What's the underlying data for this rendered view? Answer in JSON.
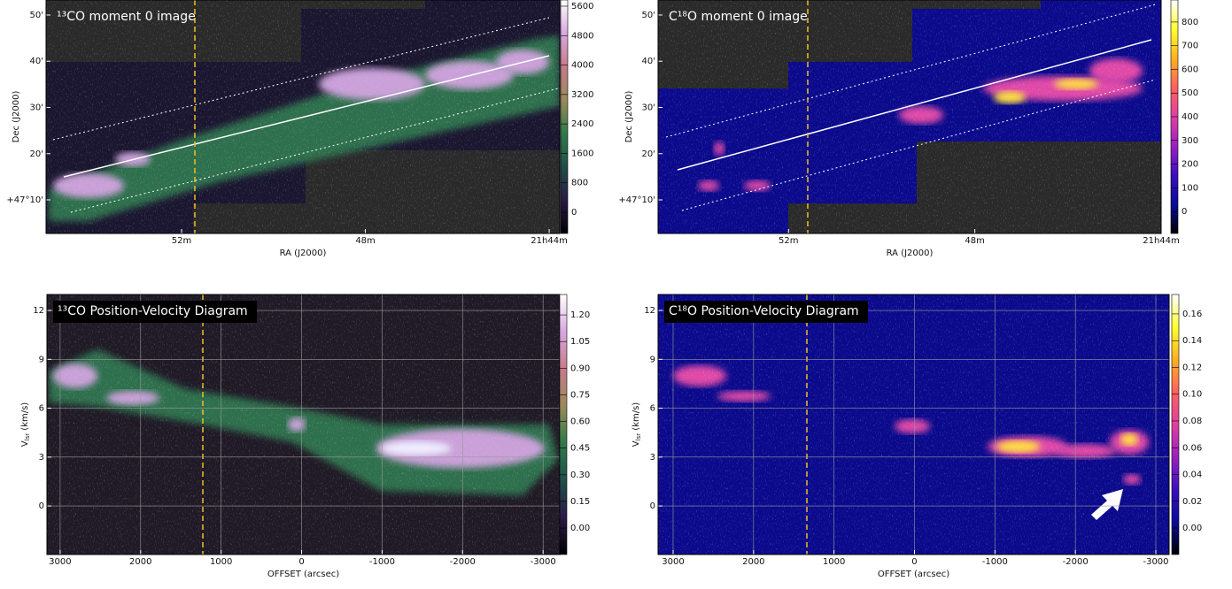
{
  "chart_data": [
    {
      "type": "image",
      "title": "¹³CO moment 0 image",
      "xlabel": "RA (J2000)",
      "ylabel": {
        "main": "Dec (J2000)"
      },
      "xlim": [
        54.95,
        43.77
      ],
      "ylim": [
        2.73,
        53.25
      ],
      "xticks": [
        {
          "value": 52,
          "label": "52m"
        },
        {
          "value": 48,
          "label": "48m"
        },
        {
          "value": 44,
          "label": "21h44m"
        }
      ],
      "yticks": [
        {
          "value": 10,
          "label": "+47°10'"
        },
        {
          "value": 20,
          "label": "20'"
        },
        {
          "value": 30,
          "label": "30'"
        },
        {
          "value": 40,
          "label": "40'"
        },
        {
          "value": 50,
          "label": "50'"
        }
      ],
      "clim": [
        -576,
        5768
      ],
      "cticks": [
        0,
        800,
        1600,
        2400,
        3200,
        4000,
        4800,
        5600
      ],
      "colormap": [
        "#000000",
        "#2b1a45",
        "#1f4f4a",
        "#2f7a4a",
        "#9a8a5a",
        "#c77a8a",
        "#d8a8e0",
        "#ffffff"
      ],
      "grid": false
    },
    {
      "type": "image",
      "title": "C¹⁸O moment 0 image",
      "xlabel": "RA (J2000)",
      "ylabel": {
        "main": "Dec (J2000)"
      },
      "xlim": [
        54.8,
        44.0
      ],
      "ylim": [
        2.73,
        53.25
      ],
      "xticks": [
        {
          "value": 52,
          "label": "52m"
        },
        {
          "value": 48,
          "label": "48m"
        },
        {
          "value": 44,
          "label": "21h44m"
        }
      ],
      "yticks": [
        {
          "value": 10,
          "label": "+47°10'"
        },
        {
          "value": 20,
          "label": "20'"
        },
        {
          "value": 30,
          "label": "30'"
        },
        {
          "value": 40,
          "label": "40'"
        },
        {
          "value": 50,
          "label": "50'"
        }
      ],
      "clim": [
        -93,
        893
      ],
      "cticks": [
        0,
        100,
        200,
        300,
        400,
        500,
        600,
        700,
        800
      ],
      "colormap": [
        "#000000",
        "#0a0a9a",
        "#3a10c0",
        "#9a20c0",
        "#e040a0",
        "#ff6060",
        "#ffb020",
        "#ffff30",
        "#ffffff"
      ],
      "grid": false
    },
    {
      "type": "image",
      "title": "¹³CO Position-Velocity Diagram",
      "xlabel": "OFFSET (arcsec)",
      "ylabel": {
        "main": "V",
        "sub": "lsr",
        "unit": " (km/s)"
      },
      "xlim": [
        3164,
        -3207
      ],
      "ylim": [
        -2.98,
        12.98
      ],
      "xticks": [
        3000,
        2000,
        1000,
        0,
        -1000,
        -2000,
        -3000
      ],
      "yticks": [
        0,
        3,
        6,
        9,
        12
      ],
      "clim": [
        -0.149,
        1.315
      ],
      "cticks": [
        {
          "value": 0,
          "label": "0.00"
        },
        {
          "value": 0.15,
          "label": "0.15"
        },
        {
          "value": 0.3,
          "label": "0.30"
        },
        {
          "value": 0.45,
          "label": "0.45"
        },
        {
          "value": 0.6,
          "label": "0.60"
        },
        {
          "value": 0.75,
          "label": "0.75"
        },
        {
          "value": 0.9,
          "label": "0.90"
        },
        {
          "value": 1.05,
          "label": "1.05"
        },
        {
          "value": 1.2,
          "label": "1.20"
        }
      ],
      "colormap": [
        "#000000",
        "#2b1a45",
        "#1f4f4a",
        "#2f7a4a",
        "#9a8a5a",
        "#c77a8a",
        "#d8a8e0",
        "#ffffff"
      ],
      "grid": true
    },
    {
      "type": "image",
      "title": "C¹⁸O Position-Velocity Diagram",
      "xlabel": "OFFSET (arcsec)",
      "ylabel": {
        "main": "V",
        "sub": "lsr",
        "unit": " (km/s)"
      },
      "xlim": [
        3187,
        -3165
      ],
      "ylim": [
        -2.98,
        12.98
      ],
      "xticks": [
        3000,
        2000,
        1000,
        0,
        -1000,
        -2000,
        -3000
      ],
      "yticks": [
        0,
        3,
        6,
        9,
        12
      ],
      "clim": [
        -0.0198,
        0.1745
      ],
      "cticks": [
        {
          "value": 0,
          "label": "0.00"
        },
        {
          "value": 0.02,
          "label": "0.02"
        },
        {
          "value": 0.04,
          "label": "0.04"
        },
        {
          "value": 0.06,
          "label": "0.06"
        },
        {
          "value": 0.08,
          "label": "0.08"
        },
        {
          "value": 0.1,
          "label": "0.10"
        },
        {
          "value": 0.12,
          "label": "0.12"
        },
        {
          "value": 0.14,
          "label": "0.14"
        },
        {
          "value": 0.16,
          "label": "0.16"
        }
      ],
      "colormap": [
        "#000000",
        "#0a0a9a",
        "#3a10c0",
        "#9a20c0",
        "#e040a0",
        "#ff6060",
        "#ffb020",
        "#ffff30",
        "#ffffff"
      ],
      "grid": true
    }
  ]
}
